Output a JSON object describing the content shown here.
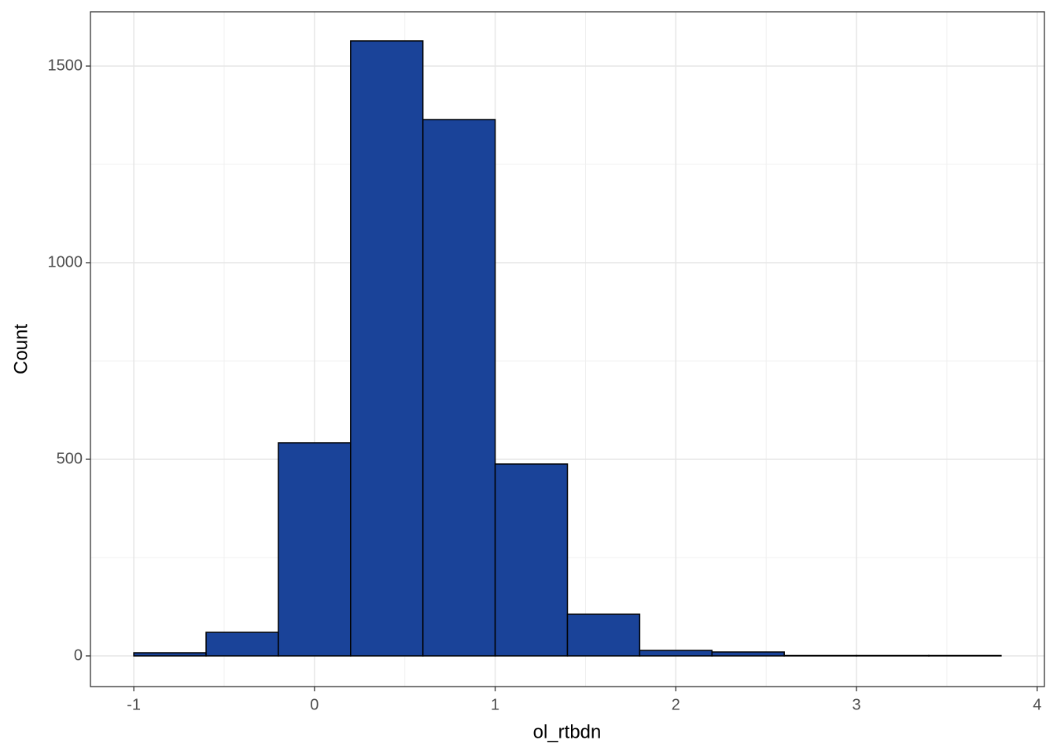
{
  "chart_data": {
    "type": "histogram",
    "x_label": "ol_rtbdn",
    "y_label": "Count",
    "bins": [
      -1,
      -0.6,
      -0.2,
      0.2,
      0.6,
      1.0,
      1.4,
      1.8,
      2.2,
      2.6,
      3.0,
      3.4,
      3.8
    ],
    "values": [
      8,
      60,
      542,
      1564,
      1364,
      488,
      106,
      14,
      10,
      1,
      1,
      1
    ],
    "color": "#1a4399",
    "edge_color": "#000000",
    "xlim": [
      -1.24,
      4.04
    ],
    "xticks": [
      -1,
      0,
      1,
      2,
      3,
      4
    ],
    "ylim": [
      -78,
      1638
    ],
    "yticks": [
      0,
      500,
      1000,
      1500
    ],
    "x_minor_grid": [
      -0.5,
      0.5,
      1.5,
      2.5,
      3.5
    ],
    "y_minor_grid": [
      250,
      750,
      1250
    ],
    "grid": true
  }
}
